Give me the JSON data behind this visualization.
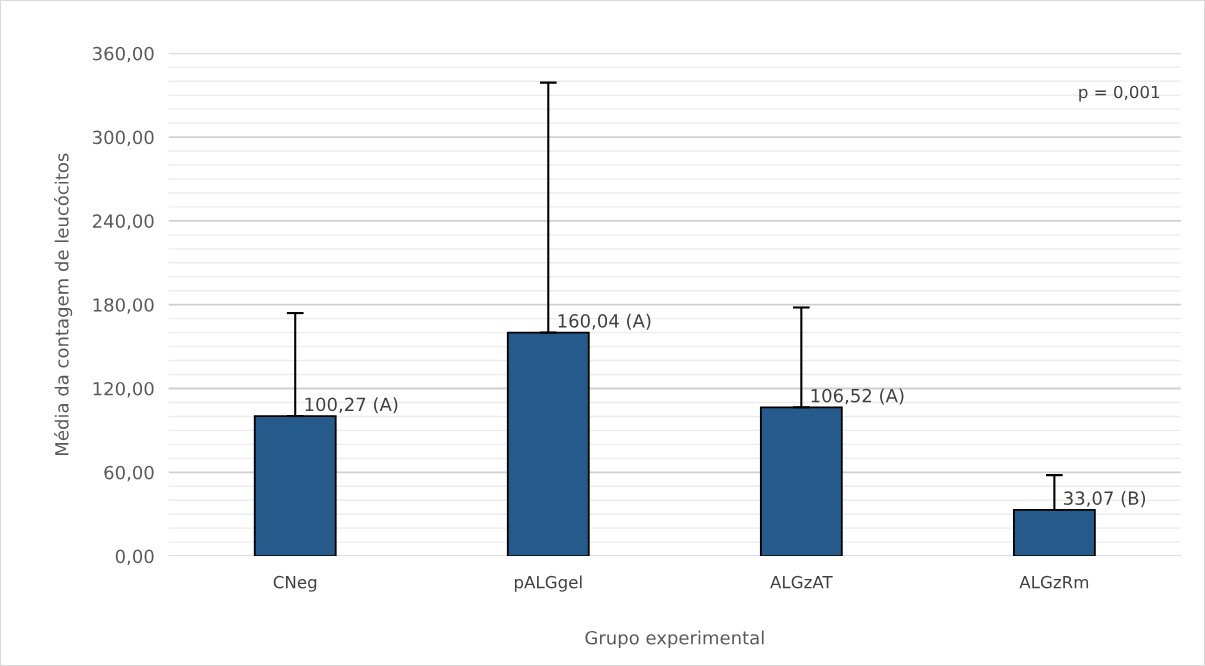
{
  "chart_data": {
    "type": "bar",
    "xlabel": "Grupo experimental",
    "ylabel": "Média da contagem de leucócitos",
    "categories": [
      "CNeg",
      "pALGgel",
      "ALGzAT",
      "ALGzRm"
    ],
    "values": [
      100.27,
      160.04,
      106.52,
      33.07
    ],
    "value_labels": [
      "100,27 (A)",
      "160,04 (A)",
      "106,52 (A)",
      "33,07 (B)"
    ],
    "errors": [
      [
        100.27,
        174
      ],
      [
        160.04,
        339
      ],
      [
        106.52,
        178
      ],
      [
        33.07,
        58
      ]
    ],
    "color": "#255a8a",
    "ylim": [
      0,
      360
    ],
    "yticks": [
      {
        "value": 0,
        "label": "0,00"
      },
      {
        "value": 10,
        "label": null
      },
      {
        "value": 20,
        "label": null
      },
      {
        "value": 30,
        "label": null
      },
      {
        "value": 40,
        "label": null
      },
      {
        "value": 50,
        "label": null
      },
      {
        "value": 60,
        "label": "60,00"
      },
      {
        "value": 70,
        "label": null
      },
      {
        "value": 80,
        "label": null
      },
      {
        "value": 90,
        "label": null
      },
      {
        "value": 100,
        "label": null
      },
      {
        "value": 110,
        "label": null
      },
      {
        "value": 120,
        "label": "120,00"
      },
      {
        "value": 130,
        "label": null
      },
      {
        "value": 140,
        "label": null
      },
      {
        "value": 150,
        "label": null
      },
      {
        "value": 160,
        "label": null
      },
      {
        "value": 170,
        "label": null
      },
      {
        "value": 180,
        "label": "180,00"
      },
      {
        "value": 190,
        "label": null
      },
      {
        "value": 200,
        "label": null
      },
      {
        "value": 210,
        "label": null
      },
      {
        "value": 220,
        "label": null
      },
      {
        "value": 230,
        "label": null
      },
      {
        "value": 240,
        "label": "240,00"
      },
      {
        "value": 250,
        "label": null
      },
      {
        "value": 260,
        "label": null
      },
      {
        "value": 270,
        "label": null
      },
      {
        "value": 280,
        "label": null
      },
      {
        "value": 290,
        "label": null
      },
      {
        "value": 300,
        "label": "300,00"
      },
      {
        "value": 310,
        "label": null
      },
      {
        "value": 320,
        "label": null
      },
      {
        "value": 330,
        "label": null
      },
      {
        "value": 340,
        "label": null
      },
      {
        "value": 350,
        "label": null
      },
      {
        "value": 360,
        "label": "360,00"
      }
    ],
    "grid": "y",
    "annotations": [
      "p = 0,001"
    ]
  }
}
